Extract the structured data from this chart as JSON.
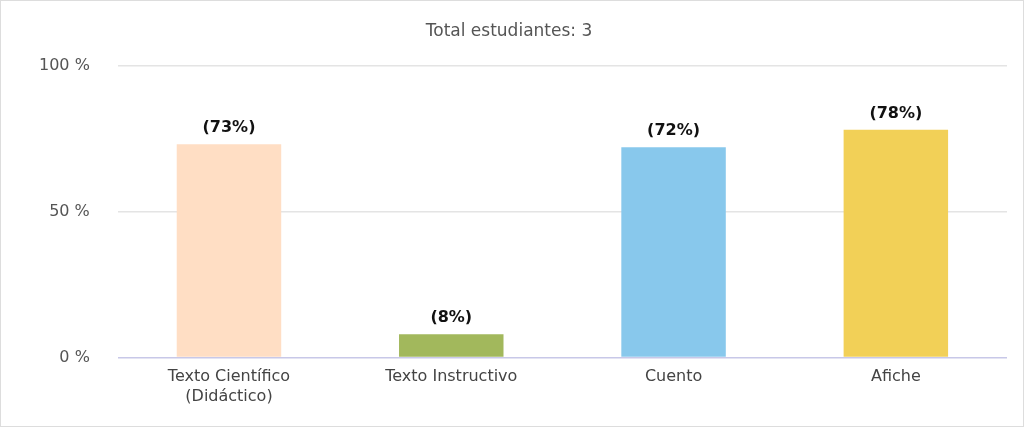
{
  "chart_data": {
    "type": "bar",
    "title": "Total estudiantes: 3",
    "categories": [
      "Texto Científico (Didáctico)",
      "Texto Instructivo",
      "Cuento",
      "Afiche"
    ],
    "values": [
      73,
      8,
      72,
      78
    ],
    "colors": [
      "#ffdec4",
      "#a2b85c",
      "#88c8ec",
      "#f2d057"
    ],
    "value_labels": [
      "(73%)",
      "(8%)",
      "(72%)",
      "(78%)"
    ],
    "ylim": [
      0,
      100
    ],
    "yticks": [
      {
        "value": 0,
        "label": "0 %"
      },
      {
        "value": 50,
        "label": "50 %"
      },
      {
        "value": 100,
        "label": "100 %"
      }
    ],
    "grid": "y",
    "legend": false
  }
}
